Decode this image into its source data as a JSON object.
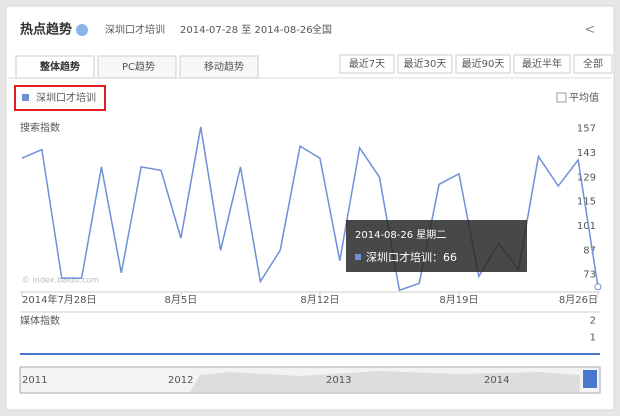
{
  "header": {
    "title": "热点趋势",
    "keyword": "深圳口才培训",
    "range": "2014-07-28 至 2014-08-26",
    "region": "全国"
  },
  "tabs": [
    "整体趋势",
    "PC趋势",
    "移动趋势"
  ],
  "buttons": [
    "最近7天",
    "最近30天",
    "最近90天",
    "最近半年",
    "全部"
  ],
  "average_toggle": "平均值",
  "watermark": "© index.baidu.com",
  "tooltip": {
    "title": "2014-08-26 星期二",
    "separator": "："
  },
  "timeline": {
    "labels": [
      "2011",
      "2012",
      "2013",
      "2014"
    ]
  },
  "chart_data": [
    {
      "type": "line",
      "y_label": "搜索指数",
      "categories": [
        "2014年7月28日",
        null,
        null,
        null,
        null,
        null,
        null,
        null,
        "8月5日",
        null,
        null,
        null,
        null,
        null,
        null,
        "8月12日",
        null,
        null,
        null,
        null,
        null,
        null,
        "8月19日",
        null,
        null,
        null,
        null,
        null,
        null,
        "8月26日"
      ],
      "series": [
        {
          "name": "深圳口才培训",
          "color": "#6f8fd8",
          "values": [
            140,
            145,
            71,
            71,
            135,
            74,
            135,
            133,
            94,
            158,
            87,
            135,
            69,
            87,
            147,
            140,
            81,
            146,
            129,
            64,
            68,
            125,
            131,
            72,
            91,
            76,
            141,
            124,
            139,
            66
          ]
        }
      ],
      "ylim": [
        63,
        162
      ],
      "yticks": [
        73,
        87,
        101,
        115,
        129,
        143,
        157
      ],
      "grid": false
    },
    {
      "type": "line",
      "y_label": "媒体指数",
      "series": [],
      "ylim": [
        0,
        2.4
      ],
      "yticks": [
        2,
        1
      ]
    }
  ]
}
